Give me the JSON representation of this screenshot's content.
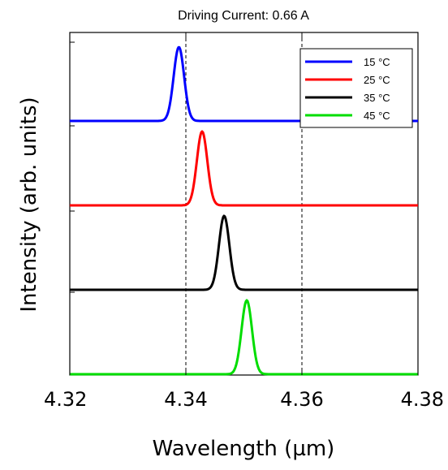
{
  "chart_data": {
    "type": "line",
    "title": "Driving Current: 0.66 A",
    "xlabel": "Wavelength (µm)",
    "ylabel": "Intensity (arb. units)",
    "xlim": [
      4.32,
      4.38
    ],
    "xticks": [
      "4.32",
      "4.34",
      "4.36",
      "4.38"
    ],
    "xtick_values": [
      4.32,
      4.34,
      4.36,
      4.38
    ],
    "yticks_labeled": false,
    "grid": false,
    "reference_lines_x": [
      4.34,
      4.36
    ],
    "legend_position": "top-right",
    "normalized": true,
    "series": [
      {
        "name": "15 °C",
        "color": "#0000ff",
        "offset": 3,
        "peak_x": 4.3388,
        "width": 0.0009,
        "height": 0.91
      },
      {
        "name": "25 °C",
        "color": "#ff0000",
        "offset": 2,
        "peak_x": 4.3428,
        "width": 0.0009,
        "height": 0.91
      },
      {
        "name": "35 °C",
        "color": "#000000",
        "offset": 1,
        "peak_x": 4.3466,
        "width": 0.0009,
        "height": 0.91
      },
      {
        "name": "45 °C",
        "color": "#00dd00",
        "offset": 0,
        "peak_x": 4.3505,
        "width": 0.0009,
        "height": 0.91
      }
    ]
  }
}
